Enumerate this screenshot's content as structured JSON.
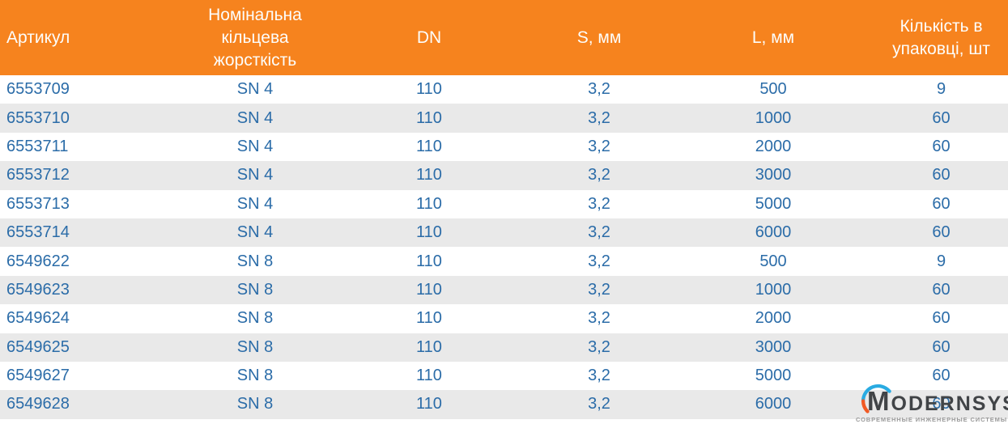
{
  "table": {
    "columns": [
      {
        "key": "article",
        "label": "Артикул"
      },
      {
        "key": "stiffness",
        "label": "Номінальна кільцева жорсткість"
      },
      {
        "key": "dn",
        "label": "DN"
      },
      {
        "key": "s",
        "label": "S, мм"
      },
      {
        "key": "l",
        "label": "L, мм"
      },
      {
        "key": "qty",
        "label": "Кількість в упаковці, шт"
      }
    ],
    "rows": [
      [
        "6553709",
        "SN 4",
        "110",
        "3,2",
        "500",
        "9"
      ],
      [
        "6553710",
        "SN 4",
        "110",
        "3,2",
        "1000",
        "60"
      ],
      [
        "6553711",
        "SN 4",
        "110",
        "3,2",
        "2000",
        "60"
      ],
      [
        "6553712",
        "SN 4",
        "110",
        "3,2",
        "3000",
        "60"
      ],
      [
        "6553713",
        "SN 4",
        "110",
        "3,2",
        "5000",
        "60"
      ],
      [
        "6553714",
        "SN 4",
        "110",
        "3,2",
        "6000",
        "60"
      ],
      [
        "6549622",
        "SN 8",
        "110",
        "3,2",
        "500",
        "9"
      ],
      [
        "6549623",
        "SN 8",
        "110",
        "3,2",
        "1000",
        "60"
      ],
      [
        "6549624",
        "SN 8",
        "110",
        "3,2",
        "2000",
        "60"
      ],
      [
        "6549625",
        "SN 8",
        "110",
        "3,2",
        "3000",
        "60"
      ],
      [
        "6549627",
        "SN 8",
        "110",
        "3,2",
        "5000",
        "60"
      ],
      [
        "6549628",
        "SN 8",
        "110",
        "3,2",
        "6000",
        "60"
      ]
    ]
  },
  "logo": {
    "wordmark": "MODERNSYS",
    "subtitle": "СОВРЕМЕННЫЕ ИНЖЕНЕРНЫЕ СИСТЕМЫ"
  },
  "colors": {
    "page_bg": "#FFFFFF",
    "header_bg": "#F6831E",
    "header_text": "#FDFDFB",
    "cell_text": "#2B6CA8",
    "row_bg": "#FFFFFF",
    "row_alt_bg": "#E9E9E9",
    "logo_text": "#414447",
    "logo_arc_blue": "#29ABE2",
    "logo_arc_orange": "#F15A24",
    "logo_subtitle": "#9A9A9A"
  }
}
